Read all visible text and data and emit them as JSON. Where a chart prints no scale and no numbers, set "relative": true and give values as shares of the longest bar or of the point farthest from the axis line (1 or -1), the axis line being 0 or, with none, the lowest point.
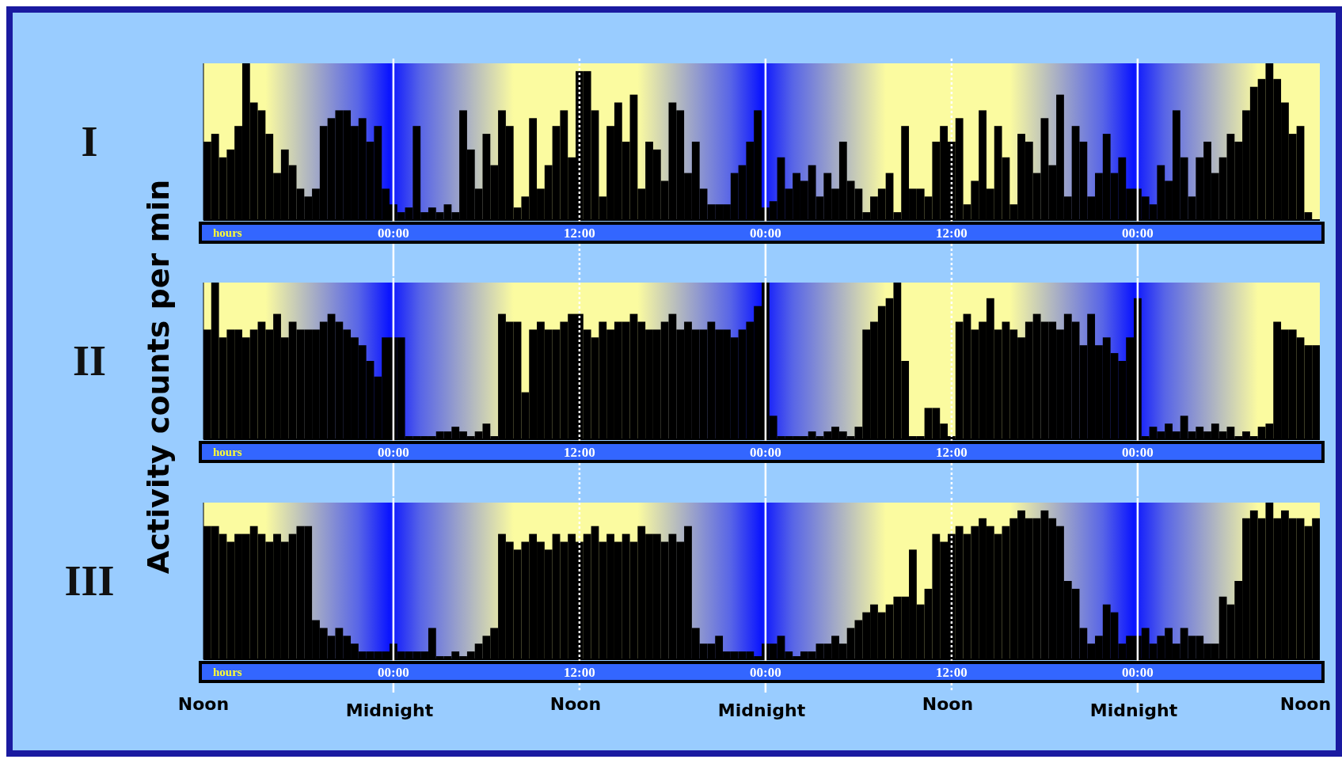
{
  "chart_data": [
    {
      "type": "bar",
      "title": "I",
      "xlabel": "hours",
      "relative": true,
      "color": "#000000",
      "categories": [
        null,
        null,
        null,
        null,
        null,
        null,
        null,
        null,
        null,
        null,
        null,
        null,
        null,
        null,
        null,
        null,
        null,
        null,
        null,
        null,
        null,
        null,
        null,
        null,
        "00:00",
        null,
        null,
        null,
        null,
        null,
        null,
        null,
        null,
        null,
        null,
        null,
        null,
        null,
        null,
        null,
        null,
        null,
        null,
        null,
        null,
        null,
        null,
        null,
        "12:00",
        null,
        null,
        null,
        null,
        null,
        null,
        null,
        null,
        null,
        null,
        null,
        null,
        null,
        null,
        null,
        null,
        null,
        null,
        null,
        null,
        null,
        null,
        null,
        "00:00",
        null,
        null,
        null,
        null,
        null,
        null,
        null,
        null,
        null,
        null,
        null,
        null,
        null,
        null,
        null,
        null,
        null,
        null,
        null,
        null,
        null,
        null,
        null,
        "12:00",
        null,
        null,
        null,
        null,
        null,
        null,
        null,
        null,
        null,
        null,
        null,
        null,
        null,
        null,
        null,
        null,
        null,
        null,
        null,
        null,
        null,
        null,
        null,
        "00:00",
        null,
        null,
        null,
        null,
        null,
        null,
        null,
        null,
        null,
        null,
        null,
        null,
        null,
        null,
        null,
        null,
        null,
        null,
        null,
        null,
        null,
        null,
        null
      ],
      "values": [
        0.5,
        0.55,
        0.4,
        0.45,
        0.6,
        1.0,
        0.75,
        0.7,
        0.55,
        0.3,
        0.45,
        0.35,
        0.2,
        0.15,
        0.2,
        0.6,
        0.65,
        0.7,
        0.7,
        0.6,
        0.65,
        0.5,
        0.6,
        0.2,
        0.1,
        0.05,
        0.08,
        0.6,
        0.05,
        0.08,
        0.05,
        0.1,
        0.05,
        0.7,
        0.45,
        0.2,
        0.55,
        0.35,
        0.7,
        0.6,
        0.08,
        0.15,
        0.65,
        0.2,
        0.35,
        0.6,
        0.7,
        0.4,
        0.95,
        0.95,
        0.7,
        0.15,
        0.6,
        0.75,
        0.5,
        0.8,
        0.2,
        0.5,
        0.45,
        0.25,
        0.75,
        0.7,
        0.3,
        0.5,
        0.2,
        0.1,
        0.1,
        0.1,
        0.3,
        0.35,
        0.5,
        0.7,
        0.08,
        0.12,
        0.4,
        0.2,
        0.3,
        0.25,
        0.35,
        0.15,
        0.3,
        0.2,
        0.5,
        0.25,
        0.2,
        0.05,
        0.15,
        0.2,
        0.3,
        0.05,
        0.6,
        0.2,
        0.2,
        0.15,
        0.5,
        0.6,
        0.5,
        0.65,
        0.1,
        0.25,
        0.7,
        0.2,
        0.6,
        0.4,
        0.1,
        0.55,
        0.5,
        0.3,
        0.65,
        0.35,
        0.8,
        0.15,
        0.6,
        0.5,
        0.15,
        0.3,
        0.55,
        0.3,
        0.4,
        0.2,
        0.2,
        0.15,
        0.1,
        0.35,
        0.25,
        0.7,
        0.4,
        0.15,
        0.4,
        0.5,
        0.3,
        0.4,
        0.55,
        0.5,
        0.7,
        0.85,
        0.9,
        1.0,
        0.9,
        0.75,
        0.55,
        0.6,
        0.05,
        0.0
      ],
      "grid": "x"
    },
    {
      "type": "bar",
      "title": "II",
      "xlabel": "hours",
      "ylabel": "Activity counts per min",
      "relative": true,
      "color": "#000000",
      "categories": [
        null,
        null,
        null,
        null,
        null,
        null,
        null,
        null,
        null,
        null,
        null,
        null,
        null,
        null,
        null,
        null,
        null,
        null,
        null,
        null,
        null,
        null,
        null,
        null,
        "00:00",
        null,
        null,
        null,
        null,
        null,
        null,
        null,
        null,
        null,
        null,
        null,
        null,
        null,
        null,
        null,
        null,
        null,
        null,
        null,
        null,
        null,
        null,
        null,
        "12:00",
        null,
        null,
        null,
        null,
        null,
        null,
        null,
        null,
        null,
        null,
        null,
        null,
        null,
        null,
        null,
        null,
        null,
        null,
        null,
        null,
        null,
        null,
        null,
        "00:00",
        null,
        null,
        null,
        null,
        null,
        null,
        null,
        null,
        null,
        null,
        null,
        null,
        null,
        null,
        null,
        null,
        null,
        null,
        null,
        null,
        null,
        null,
        null,
        "12:00",
        null,
        null,
        null,
        null,
        null,
        null,
        null,
        null,
        null,
        null,
        null,
        null,
        null,
        null,
        null,
        null,
        null,
        null,
        null,
        null,
        null,
        null,
        null,
        "00:00",
        null,
        null,
        null,
        null,
        null,
        null,
        null,
        null,
        null,
        null,
        null,
        null,
        null,
        null,
        null,
        null,
        null,
        null,
        null,
        null,
        null,
        null,
        null
      ],
      "values": [
        0.7,
        1.0,
        0.65,
        0.7,
        0.7,
        0.65,
        0.7,
        0.75,
        0.7,
        0.8,
        0.65,
        0.75,
        0.7,
        0.7,
        0.7,
        0.75,
        0.8,
        0.75,
        0.7,
        0.65,
        0.6,
        0.5,
        0.4,
        0.65,
        0.65,
        0.65,
        0.02,
        0.02,
        0.02,
        0.02,
        0.05,
        0.05,
        0.08,
        0.05,
        0.02,
        0.05,
        0.1,
        0.02,
        0.8,
        0.75,
        0.75,
        0.3,
        0.7,
        0.75,
        0.7,
        0.7,
        0.75,
        0.8,
        0.8,
        0.7,
        0.65,
        0.75,
        0.7,
        0.75,
        0.75,
        0.8,
        0.75,
        0.7,
        0.7,
        0.75,
        0.8,
        0.7,
        0.75,
        0.7,
        0.7,
        0.75,
        0.7,
        0.7,
        0.65,
        0.7,
        0.75,
        0.85,
        1.0,
        0.15,
        0.02,
        0.02,
        0.02,
        0.02,
        0.05,
        0.02,
        0.05,
        0.08,
        0.05,
        0.02,
        0.08,
        0.7,
        0.75,
        0.85,
        0.9,
        1.0,
        0.5,
        0.02,
        0.02,
        0.2,
        0.2,
        0.1,
        0.02,
        0.75,
        0.8,
        0.7,
        0.75,
        0.9,
        0.7,
        0.75,
        0.7,
        0.65,
        0.75,
        0.8,
        0.75,
        0.75,
        0.7,
        0.8,
        0.75,
        0.6,
        0.8,
        0.6,
        0.65,
        0.55,
        0.5,
        0.65,
        0.9,
        0.02,
        0.08,
        0.05,
        0.1,
        0.05,
        0.15,
        0.05,
        0.08,
        0.05,
        0.1,
        0.05,
        0.08,
        0.02,
        0.05,
        0.02,
        0.08,
        0.1,
        0.75,
        0.7,
        0.7,
        0.65,
        0.6,
        0.6
      ],
      "grid": "x"
    },
    {
      "type": "bar",
      "title": "III",
      "xlabel": "hours",
      "relative": true,
      "color": "#000000",
      "categories": [
        null,
        null,
        null,
        null,
        null,
        null,
        null,
        null,
        null,
        null,
        null,
        null,
        null,
        null,
        null,
        null,
        null,
        null,
        null,
        null,
        null,
        null,
        null,
        null,
        "00:00",
        null,
        null,
        null,
        null,
        null,
        null,
        null,
        null,
        null,
        null,
        null,
        null,
        null,
        null,
        null,
        null,
        null,
        null,
        null,
        null,
        null,
        null,
        null,
        "12:00",
        null,
        null,
        null,
        null,
        null,
        null,
        null,
        null,
        null,
        null,
        null,
        null,
        null,
        null,
        null,
        null,
        null,
        null,
        null,
        null,
        null,
        null,
        null,
        "00:00",
        null,
        null,
        null,
        null,
        null,
        null,
        null,
        null,
        null,
        null,
        null,
        null,
        null,
        null,
        null,
        null,
        null,
        null,
        null,
        null,
        null,
        null,
        null,
        "12:00",
        null,
        null,
        null,
        null,
        null,
        null,
        null,
        null,
        null,
        null,
        null,
        null,
        null,
        null,
        null,
        null,
        null,
        null,
        null,
        null,
        null,
        null,
        null,
        "00:00",
        null,
        null,
        null,
        null,
        null,
        null,
        null,
        null,
        null,
        null,
        null,
        null,
        null,
        null,
        null,
        null,
        null,
        null,
        null,
        null,
        null,
        null,
        null
      ],
      "values": [
        0.85,
        0.85,
        0.8,
        0.75,
        0.8,
        0.8,
        0.85,
        0.8,
        0.75,
        0.8,
        0.75,
        0.8,
        0.85,
        0.85,
        0.25,
        0.2,
        0.15,
        0.2,
        0.15,
        0.1,
        0.05,
        0.05,
        0.05,
        0.05,
        0.1,
        0.05,
        0.05,
        0.05,
        0.05,
        0.2,
        0.02,
        0.02,
        0.05,
        0.02,
        0.05,
        0.1,
        0.15,
        0.2,
        0.8,
        0.75,
        0.7,
        0.75,
        0.8,
        0.75,
        0.7,
        0.8,
        0.75,
        0.8,
        0.75,
        0.8,
        0.85,
        0.75,
        0.8,
        0.75,
        0.8,
        0.75,
        0.85,
        0.8,
        0.8,
        0.75,
        0.8,
        0.75,
        0.85,
        0.2,
        0.1,
        0.1,
        0.15,
        0.05,
        0.05,
        0.05,
        0.05,
        0.02,
        0.1,
        0.1,
        0.15,
        0.05,
        0.02,
        0.05,
        0.05,
        0.1,
        0.1,
        0.15,
        0.1,
        0.2,
        0.25,
        0.3,
        0.35,
        0.3,
        0.35,
        0.4,
        0.4,
        0.7,
        0.35,
        0.45,
        0.8,
        0.75,
        0.8,
        0.85,
        0.8,
        0.85,
        0.9,
        0.85,
        0.8,
        0.85,
        0.9,
        0.95,
        0.9,
        0.9,
        0.95,
        0.9,
        0.85,
        0.5,
        0.45,
        0.2,
        0.1,
        0.15,
        0.35,
        0.3,
        0.1,
        0.15,
        0.15,
        0.2,
        0.1,
        0.15,
        0.2,
        0.1,
        0.2,
        0.15,
        0.15,
        0.1,
        0.1,
        0.4,
        0.35,
        0.5,
        0.9,
        0.95,
        0.9,
        1.0,
        0.9,
        0.95,
        0.9,
        0.9,
        0.85,
        0.9
      ],
      "grid": "x",
      "annotations": [
        "Noon",
        "Midnight",
        "Noon",
        "Midnight",
        "Noon",
        "Midnight",
        "Noon"
      ]
    }
  ]
}
